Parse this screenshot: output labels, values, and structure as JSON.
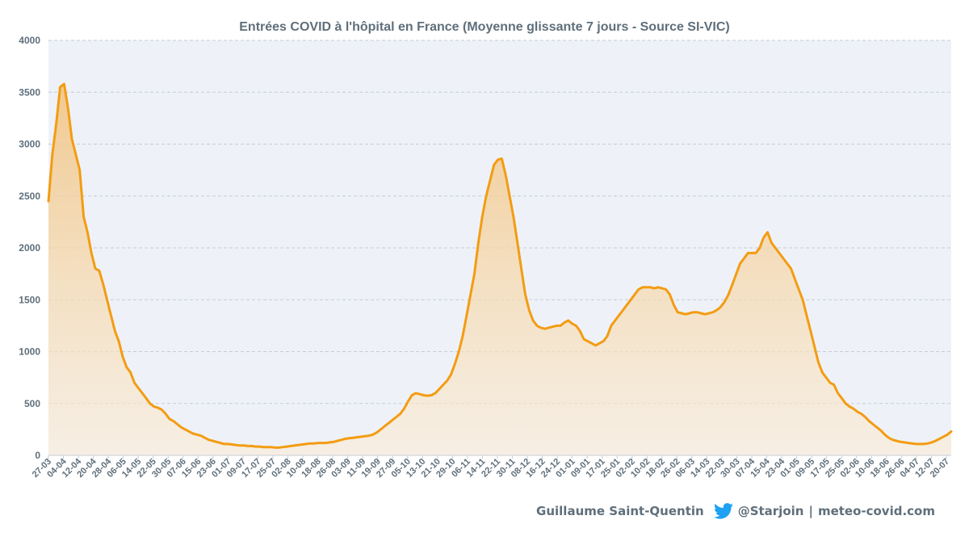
{
  "chart_data": {
    "type": "area",
    "title": "Entrées COVID à l'hôpital en France (Moyenne glissante 7 jours - Source SI-VIC)",
    "xlabel": "",
    "ylabel": "",
    "ylim": [
      0,
      4000
    ],
    "yticks": [
      0,
      500,
      1000,
      1500,
      2000,
      2500,
      3000,
      3500,
      4000
    ],
    "xtick_labels": [
      "27-03",
      "04-04",
      "12-04",
      "20-04",
      "28-04",
      "06-05",
      "14-05",
      "22-05",
      "30-05",
      "07-06",
      "15-06",
      "23-06",
      "01-07",
      "09-07",
      "17-07",
      "25-07",
      "02-08",
      "10-08",
      "18-08",
      "26-08",
      "03-09",
      "11-09",
      "19-09",
      "27-09",
      "05-10",
      "13-10",
      "21-10",
      "29-10",
      "06-11",
      "14-11",
      "22-11",
      "30-11",
      "08-12",
      "16-12",
      "24-12",
      "01-01",
      "09-01",
      "17-01",
      "25-01",
      "02-02",
      "10-02",
      "18-02",
      "26-02",
      "06-03",
      "14-03",
      "22-03",
      "30-03",
      "07-04",
      "15-04",
      "23-04",
      "01-05",
      "09-05",
      "17-05",
      "25-05",
      "02-06",
      "10-06",
      "18-06",
      "26-06",
      "04-07",
      "12-07",
      "20-07"
    ],
    "grid": true,
    "series": [
      {
        "values": [
          2450,
          2900,
          3200,
          3550,
          3580,
          3350,
          3050,
          2900,
          2750,
          2300,
          2150,
          1950,
          1800,
          1780,
          1650,
          1500,
          1350,
          1200,
          1100,
          950,
          850,
          800,
          700,
          650,
          600,
          550,
          500,
          470,
          460,
          440,
          400,
          350,
          330,
          300,
          270,
          250,
          230,
          210,
          200,
          190,
          170,
          150,
          140,
          130,
          120,
          110,
          110,
          105,
          100,
          95,
          95,
          90,
          90,
          85,
          85,
          80,
          80,
          80,
          75,
          75,
          80,
          85,
          90,
          95,
          100,
          105,
          110,
          115,
          115,
          120,
          120,
          120,
          125,
          130,
          140,
          150,
          160,
          165,
          170,
          175,
          180,
          185,
          190,
          200,
          220,
          250,
          280,
          310,
          340,
          370,
          400,
          450,
          520,
          580,
          600,
          590,
          580,
          575,
          580,
          600,
          640,
          680,
          720,
          780,
          880,
          1000,
          1150,
          1350,
          1550,
          1750,
          2050,
          2300,
          2500,
          2650,
          2800,
          2850,
          2860,
          2700,
          2500,
          2300,
          2050,
          1800,
          1550,
          1400,
          1300,
          1250,
          1230,
          1220,
          1230,
          1240,
          1250,
          1250,
          1280,
          1300,
          1270,
          1250,
          1200,
          1120,
          1100,
          1080,
          1060,
          1080,
          1100,
          1150,
          1250,
          1300,
          1350,
          1400,
          1450,
          1500,
          1550,
          1600,
          1620,
          1620,
          1620,
          1610,
          1620,
          1610,
          1600,
          1550,
          1450,
          1380,
          1370,
          1360,
          1370,
          1380,
          1380,
          1370,
          1360,
          1370,
          1380,
          1400,
          1430,
          1480,
          1550,
          1650,
          1750,
          1850,
          1900,
          1950,
          1950,
          1950,
          2000,
          2100,
          2150,
          2050,
          2000,
          1950,
          1900,
          1850,
          1800,
          1700,
          1600,
          1500,
          1350,
          1200,
          1050,
          900,
          800,
          750,
          700,
          680,
          600,
          550,
          500,
          470,
          450,
          420,
          400,
          370,
          330,
          300,
          270,
          240,
          200,
          170,
          150,
          140,
          130,
          125,
          120,
          115,
          110,
          110,
          110,
          115,
          125,
          140,
          160,
          180,
          200,
          230
        ]
      }
    ]
  },
  "credits": {
    "author": "Guillaume Saint-Quentin",
    "handle": "@Starjoin",
    "separator": "|",
    "site": "meteo-covid.com"
  },
  "colors": {
    "line": "#f39c12",
    "area_top": "#f0c27f",
    "plot_bg": "#eef2f8",
    "text": "#5f6f7b",
    "twitter": "#1da1f2"
  }
}
